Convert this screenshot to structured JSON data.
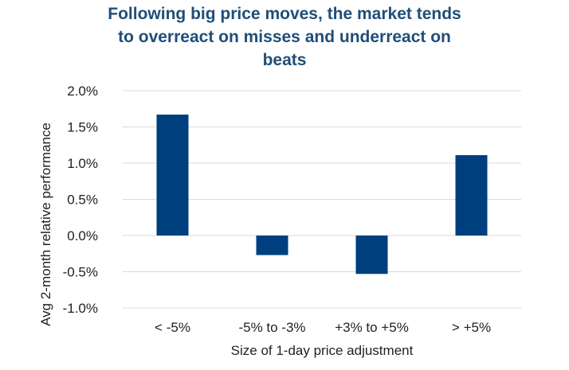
{
  "chart_data": {
    "type": "bar",
    "title_lines": [
      "Following big price moves, the market tends",
      "to overreact on misses and underreact on",
      "beats"
    ],
    "xlabel": "Size of 1-day price adjustment",
    "ylabel": "Avg 2-month relative performance",
    "categories": [
      "< -5%",
      "-5% to -3%",
      "+3% to +5%",
      "> +5%"
    ],
    "values": [
      1.67,
      -0.27,
      -0.53,
      1.11
    ],
    "ylim": [
      -1.0,
      2.0
    ],
    "yticks": [
      2.0,
      1.5,
      1.0,
      0.5,
      0.0,
      -0.5,
      -1.0
    ],
    "ytick_labels": [
      "2.0%",
      "1.5%",
      "1.0%",
      "0.5%",
      "0.0%",
      "-0.5%",
      "-1.0%"
    ],
    "grid": true,
    "legend": "none",
    "colors": {
      "bar": "#003f7d",
      "title": "#1f4e79",
      "grid": "#d9d9d9"
    }
  }
}
